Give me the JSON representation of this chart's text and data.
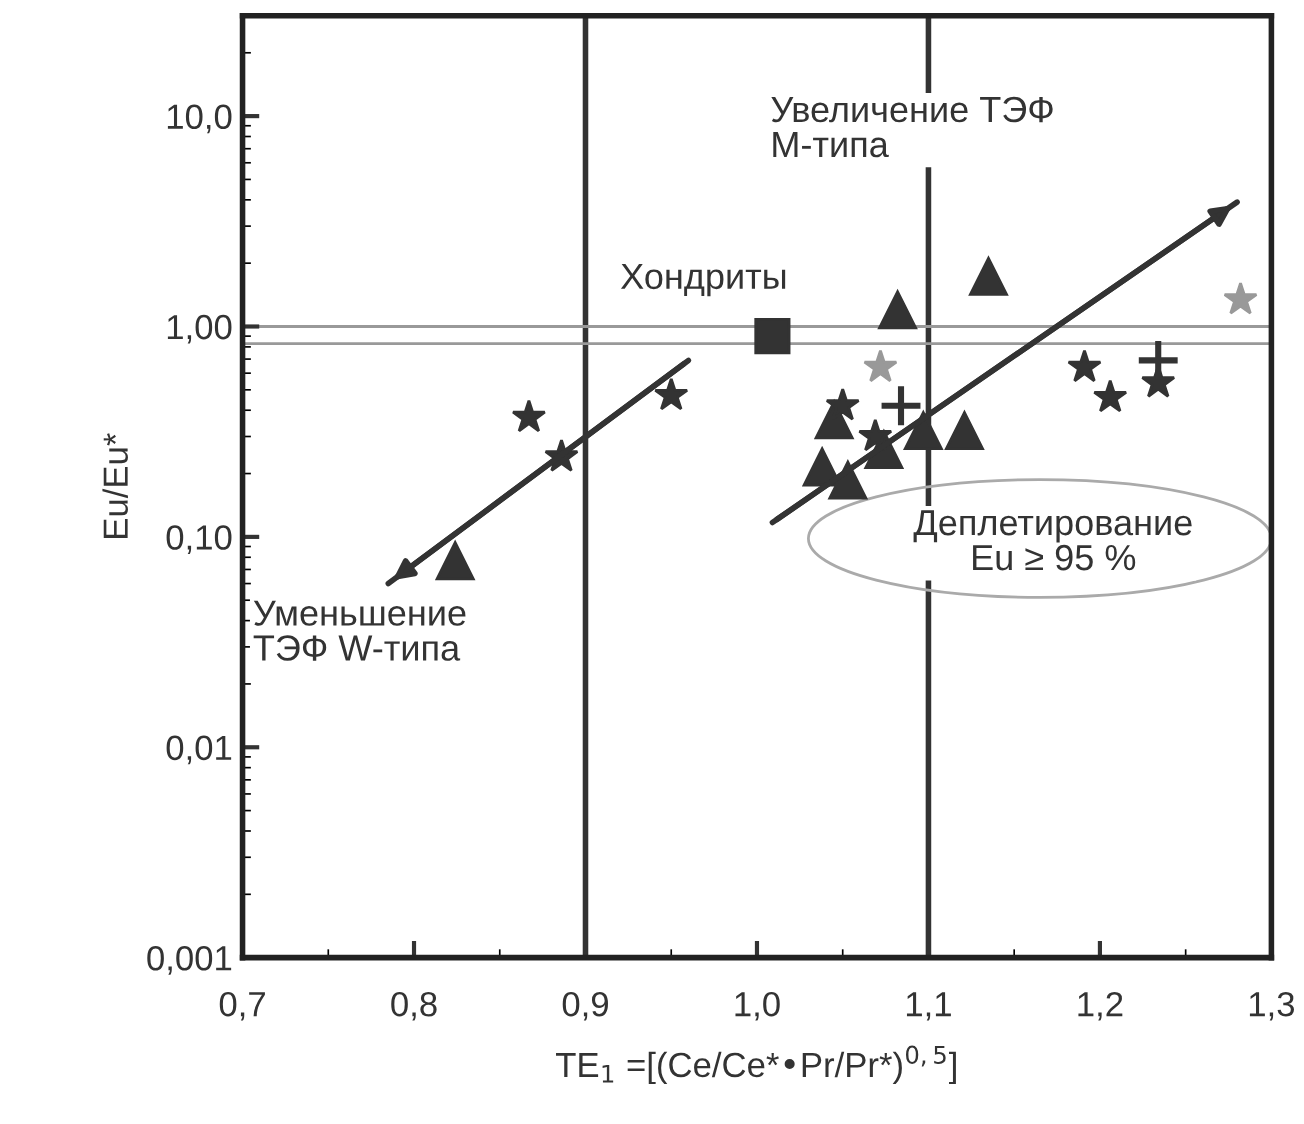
{
  "chart_data": {
    "type": "scatter",
    "xlabel": "TE$_{1}$ =[(Ce/Ce*•Pr/Pr*)$^{0,5}$]",
    "ylabel": "Eu/Eu*",
    "log": "y",
    "xlim": [
      0.7,
      1.3
    ],
    "ylim": [
      0.001,
      30
    ],
    "xticks": [
      {
        "value": 0.7,
        "label": "0,7"
      },
      {
        "value": 0.8,
        "label": "0,8"
      },
      {
        "value": 0.9,
        "label": "0,9"
      },
      {
        "value": 1.0,
        "label": "1,0"
      },
      {
        "value": 1.1,
        "label": "1,1"
      },
      {
        "value": 1.2,
        "label": "1,2"
      },
      {
        "value": 1.3,
        "label": "1,3"
      }
    ],
    "yticks": [
      {
        "value": 0.001,
        "label": "0,001"
      },
      {
        "value": 0.01,
        "label": "0,01"
      },
      {
        "value": 0.1,
        "label": "0,10"
      },
      {
        "value": 1,
        "label": "1,00"
      },
      {
        "value": 10,
        "label": "10,0"
      }
    ],
    "grid": false,
    "legend": false,
    "series": [
      {
        "marker": "triangle",
        "color": "#333333",
        "x": [
          1.082,
          1.135,
          1.045,
          1.074,
          1.097,
          1.121,
          1.038,
          1.053,
          0.824
        ],
        "values": [
          1.2,
          1.73,
          0.36,
          0.26,
          0.32,
          0.32,
          0.215,
          0.186,
          0.077
        ]
      },
      {
        "marker": "star",
        "color": "#333333",
        "x": [
          0.867,
          0.886,
          0.95,
          1.05,
          1.069,
          1.191,
          1.206,
          1.234
        ],
        "values": [
          0.37,
          0.24,
          0.47,
          0.42,
          0.3,
          0.64,
          0.46,
          0.54
        ]
      },
      {
        "marker": "star",
        "color": "#999999",
        "x": [
          1.072,
          1.282
        ],
        "values": [
          0.64,
          1.34
        ]
      },
      {
        "marker": "cross",
        "color": "#333333",
        "x": [
          1.084,
          1.234
        ],
        "values": [
          0.42,
          0.69
        ]
      },
      {
        "marker": "square",
        "color": "#333333",
        "x": [
          1.009
        ],
        "values": [
          0.9
        ]
      },
      {
        "type": "line",
        "color": "#333333",
        "x": [
          0.96,
          0.785
        ],
        "values": [
          0.69,
          0.06
        ]
      },
      {
        "type": "line",
        "color": "#333333",
        "x": [
          1.009,
          1.28
        ],
        "values": [
          0.117,
          3.9
        ]
      }
    ],
    "ref_lines": [
      {
        "axis": "x",
        "value": 0.9,
        "color": "#333333"
      },
      {
        "axis": "x",
        "value": 1.1,
        "color": "#333333"
      },
      {
        "axis": "y",
        "value": 1.0,
        "color": "#999999"
      },
      {
        "axis": "y",
        "value": 0.83,
        "color": "#999999"
      }
    ],
    "annotations": [
      "Увеличение ТЭФ\nМ-типа",
      "Хондриты",
      "Деплетирование\nEu ≥ 95 %",
      "Уменьшение\nТЭФ W-типа"
    ]
  }
}
